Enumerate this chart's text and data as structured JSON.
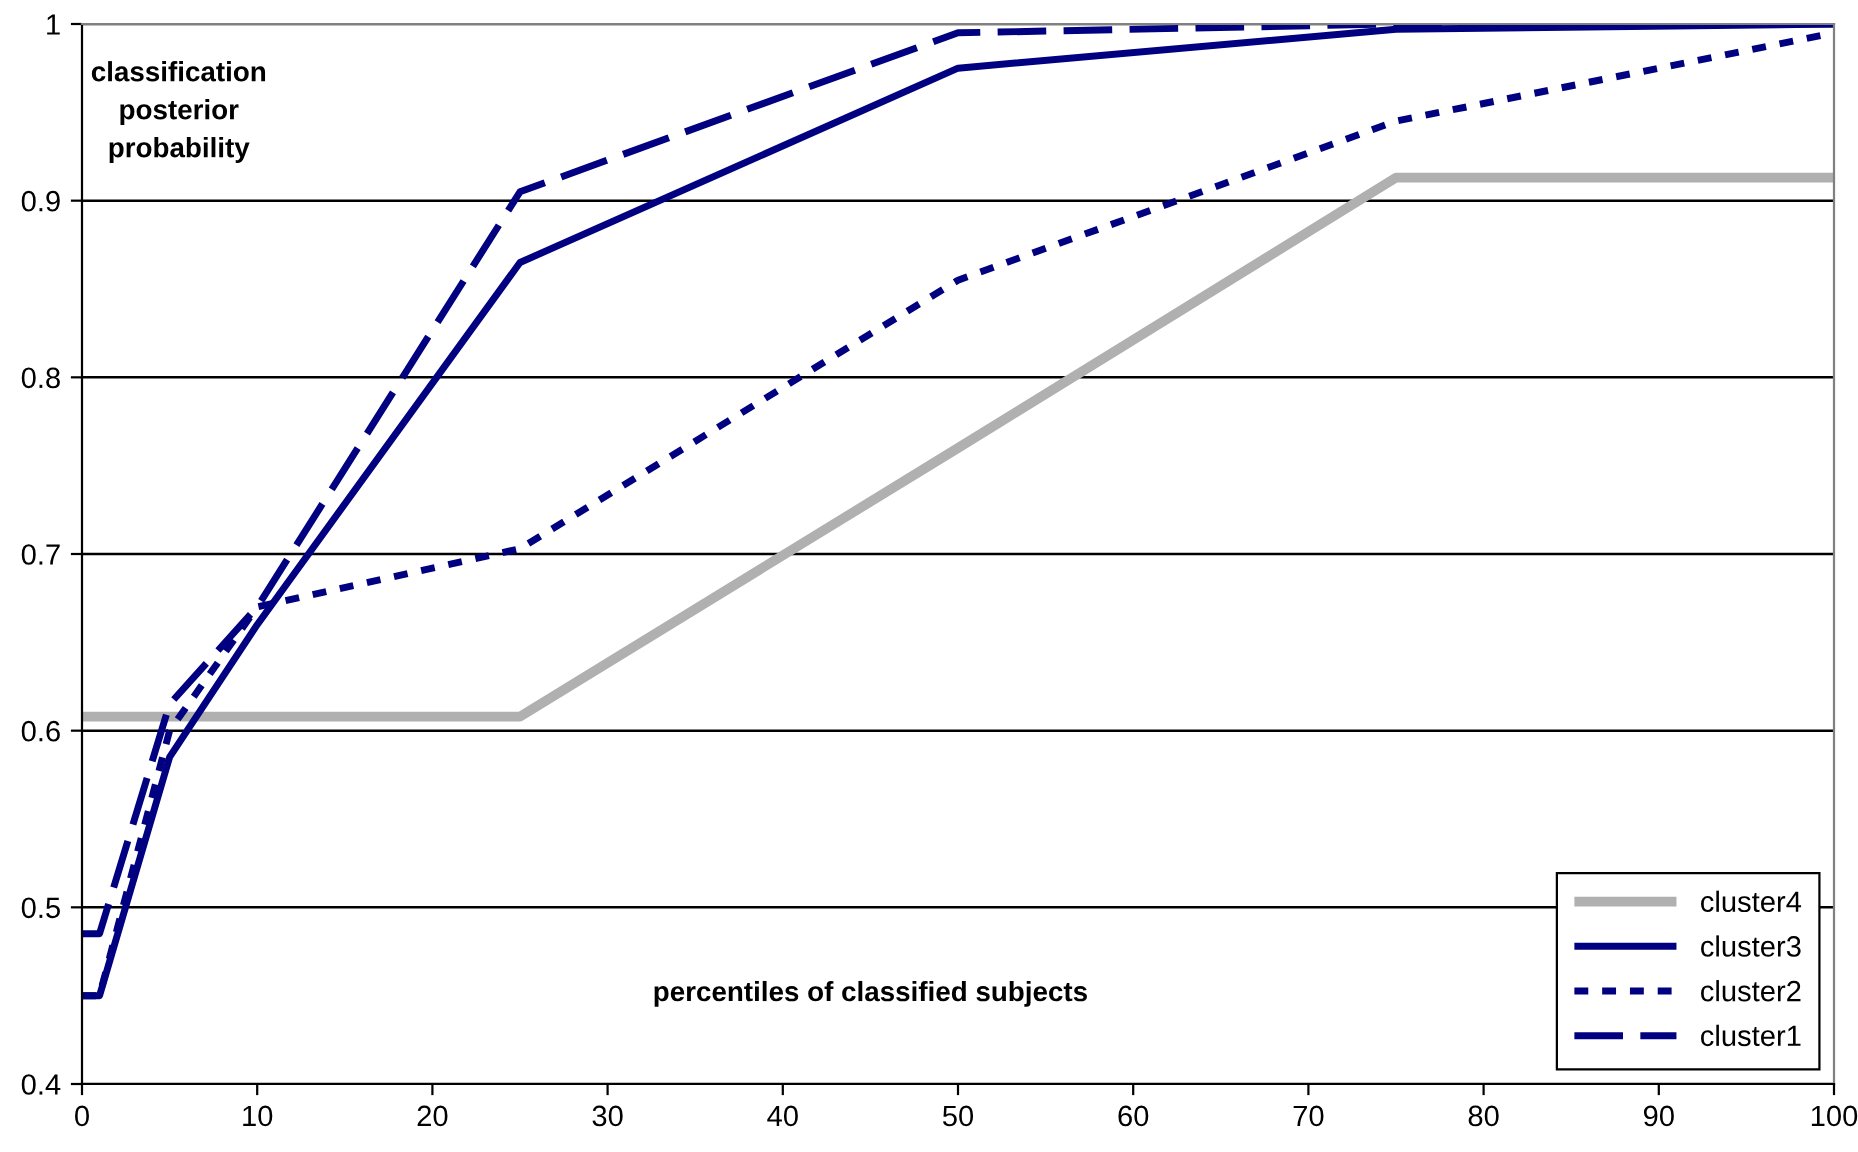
{
  "chart_data": {
    "type": "line",
    "xlabel": "percentiles of classified subjects",
    "ylabel": "classification\nposterior\nprobability",
    "xlim": [
      0,
      100
    ],
    "xticks": [
      0,
      10,
      20,
      30,
      40,
      50,
      60,
      70,
      80,
      90,
      100
    ],
    "ylim": [
      0.4,
      1
    ],
    "yticks": [
      0.4,
      0.5,
      0.6,
      0.7,
      0.8,
      0.9,
      1
    ],
    "grid": "y",
    "legend": "bottom right",
    "marker": "none",
    "series": [
      {
        "name": "cluster4",
        "color": "#b0b0b0",
        "line_style": "solid",
        "x": [
          0,
          25,
          50,
          75,
          100
        ],
        "values": [
          0.608,
          0.608,
          0.76,
          0.913,
          0.913
        ]
      },
      {
        "name": "cluster3",
        "color": "#000080",
        "line_style": "solid",
        "x": [
          0,
          1,
          5,
          10,
          25,
          50,
          75,
          100
        ],
        "values": [
          0.45,
          0.45,
          0.585,
          0.66,
          0.865,
          0.975,
          0.997,
          1.0
        ]
      },
      {
        "name": "cluster2",
        "color": "#000080",
        "line_style": "dotted",
        "x": [
          0,
          1,
          5,
          10,
          25,
          50,
          75,
          90,
          100
        ],
        "values": [
          0.45,
          0.45,
          0.6,
          0.67,
          0.703,
          0.855,
          0.945,
          0.975,
          0.995
        ]
      },
      {
        "name": "cluster1",
        "color": "#000080",
        "line_style": "dashed",
        "x": [
          0,
          1,
          5,
          10,
          25,
          50,
          75,
          100
        ],
        "values": [
          0.485,
          0.485,
          0.615,
          0.67,
          0.905,
          0.995,
          1.0,
          1.0
        ]
      }
    ]
  }
}
